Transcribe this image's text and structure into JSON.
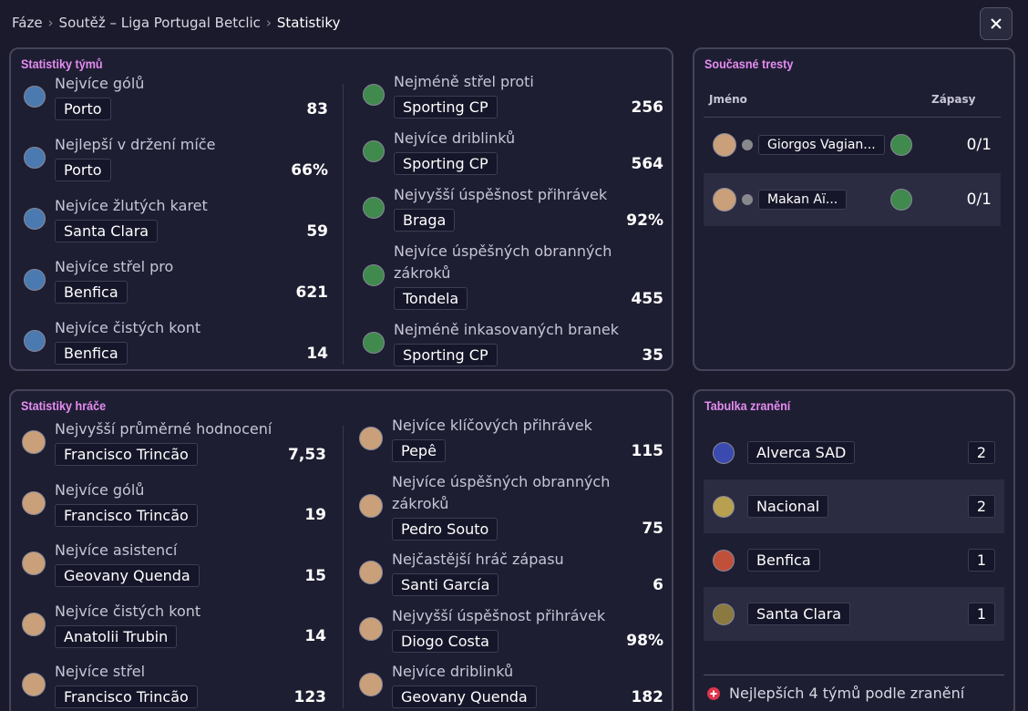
{
  "breadcrumb": [
    "Fáze",
    "Soutěž – Liga Portugal Betclic",
    "Statistiky"
  ],
  "team_stats": {
    "title": "Statistiky týmů",
    "left": [
      {
        "label": "Nejvíce gólů",
        "name": "Porto",
        "value": "83"
      },
      {
        "label": "Nejlepší v držení míče",
        "name": "Porto",
        "value": "66%"
      },
      {
        "label": "Nejvíce žlutých karet",
        "name": "Santa Clara",
        "value": "59"
      },
      {
        "label": "Nejvíce střel pro",
        "name": "Benfica",
        "value": "621"
      },
      {
        "label": "Nejvíce čistých kont",
        "name": "Benfica",
        "value": "14"
      }
    ],
    "right": [
      {
        "label": "Nejméně střel proti",
        "name": "Sporting CP",
        "value": "256"
      },
      {
        "label": "Nejvíce driblinků",
        "name": "Sporting CP",
        "value": "564"
      },
      {
        "label": "Nejvyšší úspěšnost přihrávek",
        "name": "Braga",
        "value": "92%"
      },
      {
        "label": "Nejvíce úspěšných obranných zákroků",
        "name": "Tondela",
        "value": "455"
      },
      {
        "label": "Nejméně inkasovaných branek",
        "name": "Sporting CP",
        "value": "35"
      }
    ]
  },
  "player_stats": {
    "title": "Statistiky hráče",
    "left": [
      {
        "label": "Nejvyšší průměrné hodnocení",
        "name": "Francisco Trincão",
        "value": "7,53"
      },
      {
        "label": "Nejvíce gólů",
        "name": "Francisco Trincão",
        "value": "19"
      },
      {
        "label": "Nejvíce asistencí",
        "name": "Geovany Quenda",
        "value": "15"
      },
      {
        "label": "Nejvíce čistých kont",
        "name": "Anatolii Trubin",
        "value": "14"
      },
      {
        "label": "Nejvíce střel",
        "name": "Francisco Trincão",
        "value": "123"
      }
    ],
    "right": [
      {
        "label": "Nejvíce klíčových přihrávek",
        "name": "Pepê",
        "value": "115"
      },
      {
        "label": "Nejvíce úspěšných obranných zákroků",
        "name": "Pedro Souto",
        "value": "75"
      },
      {
        "label": "Nejčastější hráč zápasu",
        "name": "Santi García",
        "value": "6"
      },
      {
        "label": "Nejvyšší úspěšnost přihrávek",
        "name": "Diogo Costa",
        "value": "98%"
      },
      {
        "label": "Nejvíce driblinků",
        "name": "Geovany Quenda",
        "value": "182"
      }
    ]
  },
  "penalties": {
    "title": "Současné tresty",
    "headers": [
      "Jméno",
      "Zápasy"
    ],
    "rows": [
      {
        "name": "Giorgos Vagian...",
        "matches": "0/1"
      },
      {
        "name": "Makan Aï...",
        "matches": "0/1"
      }
    ]
  },
  "injuries": {
    "title": "Tabulka zranění",
    "rows": [
      {
        "team": "Alverca SAD",
        "count": "2"
      },
      {
        "team": "Nacional",
        "count": "2"
      },
      {
        "team": "Benfica",
        "count": "1"
      },
      {
        "team": "Santa Clara",
        "count": "1"
      }
    ],
    "footer": "Nejlepších 4 týmů podle zranění"
  }
}
